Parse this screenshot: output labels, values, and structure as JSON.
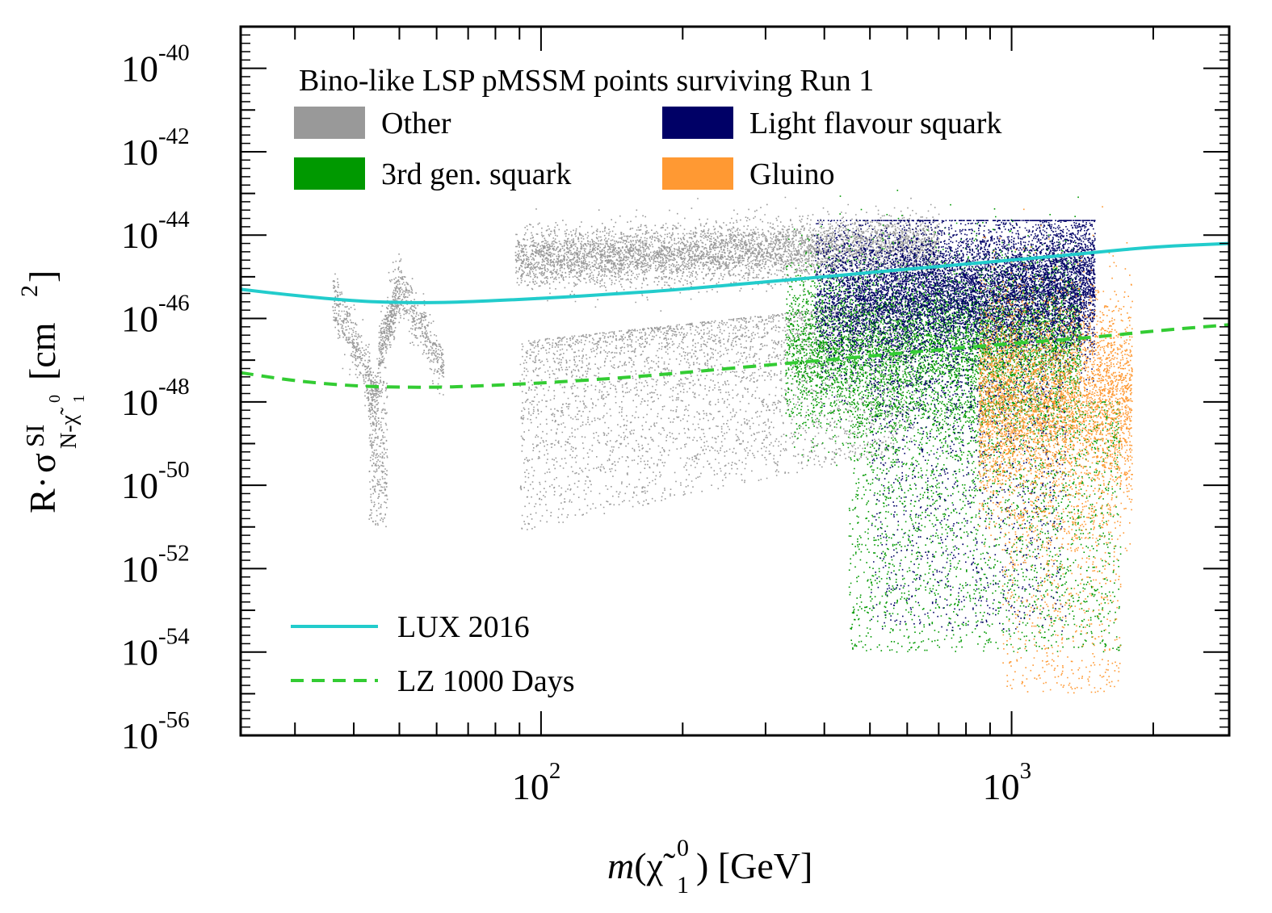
{
  "chart_data": {
    "type": "scatter",
    "title": "Bino-like LSP pMSSM points surviving Run 1",
    "xlabel": "m(χ̃⁰₁) [GeV]",
    "xlabel_parts": {
      "m": "m",
      "open": "(",
      "chi": "χ̃",
      "sup": "0",
      "sub": "1",
      "close": ")",
      "unit": " [GeV]"
    },
    "ylabel": "R · σ^SI_{N-χ̃⁰₁} [cm²]",
    "ylabel_parts": {
      "r": "R",
      "dot": "·",
      "sigma": "σ",
      "sup": "SI",
      "sub": "N-χ̃",
      "sub_sup": "0",
      "sub_sub": "1",
      "unit": " [cm",
      "unit_sup": "2",
      "unit_close": "]"
    },
    "x_scale": "log",
    "y_scale": "log",
    "xlim": [
      23,
      2900
    ],
    "ylim": [
      1e-56,
      1e-39
    ],
    "x_ticks": [
      {
        "value": 100,
        "base": "10",
        "exp": "2"
      },
      {
        "value": 1000,
        "base": "10",
        "exp": "3"
      }
    ],
    "y_ticks": [
      {
        "value": -40,
        "base": "10",
        "exp": "-40"
      },
      {
        "value": -42,
        "base": "10",
        "exp": "-42"
      },
      {
        "value": -44,
        "base": "10",
        "exp": "-44"
      },
      {
        "value": -46,
        "base": "10",
        "exp": "-46"
      },
      {
        "value": -48,
        "base": "10",
        "exp": "-48"
      },
      {
        "value": -50,
        "base": "10",
        "exp": "-50"
      },
      {
        "value": -52,
        "base": "10",
        "exp": "-52"
      },
      {
        "value": -54,
        "base": "10",
        "exp": "-54"
      },
      {
        "value": -56,
        "base": "10",
        "exp": "-56"
      }
    ],
    "scatter_series": [
      {
        "name": "Other",
        "color": "#999999"
      },
      {
        "name": "Light flavour squark",
        "color": "#000066"
      },
      {
        "name": "3rd gen. squark",
        "color": "#009900"
      },
      {
        "name": "Gluino",
        "color": "#ff9933"
      }
    ],
    "lines": [
      {
        "name": "LUX 2016",
        "color": "#22cccc",
        "style": "solid",
        "x": [
          23,
          30,
          40,
          50,
          60,
          70,
          100,
          150,
          200,
          300,
          400,
          500,
          700,
          1000,
          1500,
          2000,
          2900
        ],
        "log10_y": [
          -45.3,
          -45.45,
          -45.58,
          -45.62,
          -45.62,
          -45.6,
          -45.52,
          -45.4,
          -45.3,
          -45.12,
          -45.0,
          -44.9,
          -44.75,
          -44.6,
          -44.42,
          -44.28,
          -44.2
        ]
      },
      {
        "name": "LZ 1000 Days",
        "color": "#33cc33",
        "style": "dashed",
        "x": [
          23,
          30,
          40,
          50,
          60,
          70,
          100,
          150,
          200,
          300,
          400,
          500,
          700,
          1000,
          1500,
          2000,
          2900
        ],
        "log10_y": [
          -47.3,
          -47.5,
          -47.62,
          -47.65,
          -47.65,
          -47.63,
          -47.55,
          -47.42,
          -47.3,
          -47.12,
          -47.0,
          -46.9,
          -46.75,
          -46.6,
          -46.45,
          -46.3,
          -46.15
        ]
      }
    ],
    "legend_position": "top-left and bottom-left"
  }
}
